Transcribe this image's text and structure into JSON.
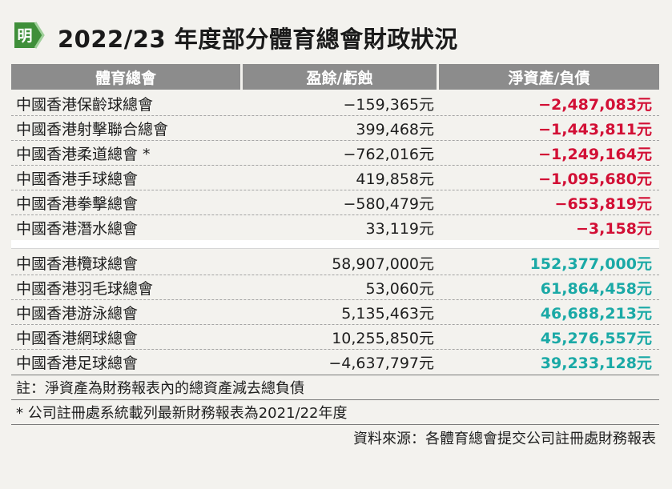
{
  "header": {
    "logo_glyph": "明",
    "title": "2022/23 年度部分體育總會財政狀況"
  },
  "table": {
    "columns": [
      "體育總會",
      "盈餘/虧蝕",
      "淨資產/負債"
    ],
    "group_deficit": [
      {
        "name": "中國香港保齡球總會",
        "surplus": "−159,365元",
        "net": "−2,487,083元"
      },
      {
        "name": "中國香港射擊聯合總會",
        "surplus": "399,468元",
        "net": "−1,443,811元"
      },
      {
        "name": "中國香港柔道總會 *",
        "surplus": "−762,016元",
        "net": "−1,249,164元"
      },
      {
        "name": "中國香港手球總會",
        "surplus": "419,858元",
        "net": "−1,095,680元"
      },
      {
        "name": "中國香港拳擊總會",
        "surplus": "−580,479元",
        "net": "−653,819元"
      },
      {
        "name": "中國香港潛水總會",
        "surplus": "33,119元",
        "net": "−3,158元"
      }
    ],
    "group_surplus": [
      {
        "name": "中國香港欖球總會",
        "surplus": "58,907,000元",
        "net": "152,377,000元"
      },
      {
        "name": "中國香港羽毛球總會",
        "surplus": "53,060元",
        "net": "61,864,458元"
      },
      {
        "name": "中國香港游泳總會",
        "surplus": "5,135,463元",
        "net": "46,688,213元"
      },
      {
        "name": "中國香港網球總會",
        "surplus": "10,255,850元",
        "net": "45,276,557元"
      },
      {
        "name": "中國香港足球總會",
        "surplus": "−4,637,797元",
        "net": "39,233,128元"
      }
    ]
  },
  "notes": {
    "note1": "註：淨資產為財務報表內的總資產減去總負債",
    "note2": "* 公司註冊處系統載列最新財務報表為2021/22年度",
    "source": "資料來源：各體育總會提交公司註冊處財務報表"
  },
  "colors": {
    "negative": "#d20f35",
    "positive": "#1aa9a6",
    "header_bg": "#8c8c8c",
    "logo_green": "#3f8f3a"
  }
}
